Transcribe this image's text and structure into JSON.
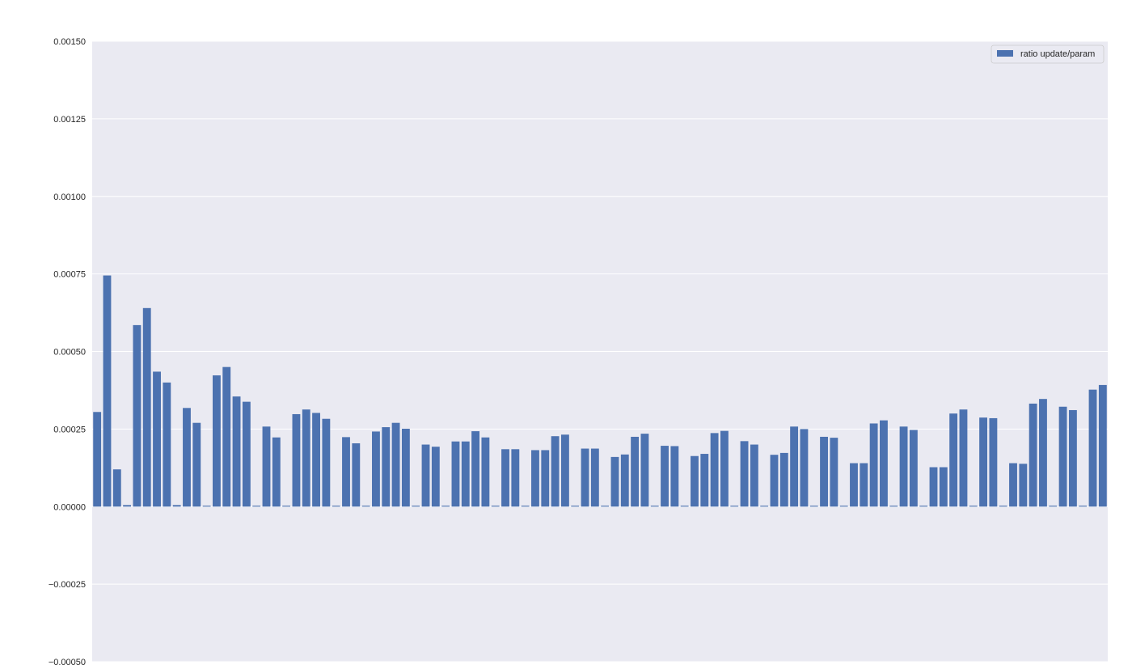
{
  "chart_data": {
    "type": "bar",
    "title": "",
    "xlabel": "",
    "ylabel": "",
    "ylim": [
      -0.0005,
      0.0015
    ],
    "yticks": [
      -0.0005,
      -0.00025,
      0.0,
      0.00025,
      0.0005,
      0.00075,
      0.001,
      0.00125,
      0.0015
    ],
    "ytick_labels": [
      "−0.00050",
      "−0.00025",
      "0.00000",
      "0.00025",
      "0.00050",
      "0.00075",
      "0.00100",
      "0.00125",
      "0.00150"
    ],
    "grid": true,
    "legend_position": "top-right",
    "series": [
      {
        "name": "ratio update/param",
        "color": "#4c72b0",
        "values": [
          0.000305,
          0.000745,
          0.00012,
          5e-06,
          0.000585,
          0.00064,
          0.000435,
          0.0004,
          5e-06,
          0.000318,
          0.00027,
          3e-06,
          0.000423,
          0.00045,
          0.000355,
          0.000338,
          3e-06,
          0.000258,
          0.000223,
          3e-06,
          0.000298,
          0.000313,
          0.000302,
          0.000283,
          3e-06,
          0.000224,
          0.000204,
          3e-06,
          0.000242,
          0.000256,
          0.00027,
          0.000251,
          3e-06,
          0.0002,
          0.000193,
          3e-06,
          0.00021,
          0.00021,
          0.000243,
          0.000223,
          3e-06,
          0.000185,
          0.000185,
          3e-06,
          0.000182,
          0.000182,
          0.000227,
          0.000232,
          3e-06,
          0.000187,
          0.000187,
          3e-06,
          0.00016,
          0.000168,
          0.000225,
          0.000235,
          3e-06,
          0.000196,
          0.000195,
          3e-06,
          0.000163,
          0.00017,
          0.000237,
          0.000244,
          3e-06,
          0.000211,
          0.0002,
          3e-06,
          0.000167,
          0.000173,
          0.000258,
          0.00025,
          3e-06,
          0.000225,
          0.000222,
          3e-06,
          0.00014,
          0.00014,
          0.000268,
          0.000278,
          3e-06,
          0.000258,
          0.000247,
          3e-06,
          0.000127,
          0.000127,
          0.0003,
          0.000313,
          3e-06,
          0.000287,
          0.000285,
          3e-06,
          0.00014,
          0.000138,
          0.000332,
          0.000347,
          3e-06,
          0.000322,
          0.000311,
          3e-06,
          0.000377,
          0.000392
        ]
      }
    ]
  }
}
